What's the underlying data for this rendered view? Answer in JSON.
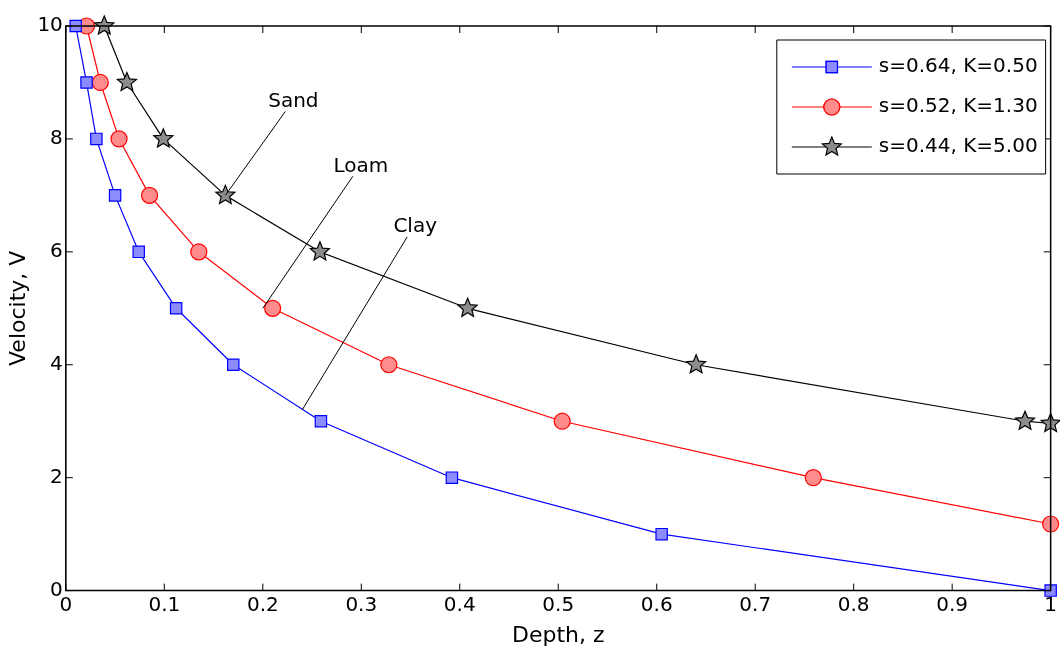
{
  "chart_data": {
    "type": "line",
    "xlabel": "Depth, z",
    "ylabel": "Velocity, V",
    "xlim": [
      0,
      1
    ],
    "ylim": [
      0,
      10
    ],
    "xticks": [
      0,
      0.1,
      0.2,
      0.3,
      0.4,
      0.5,
      0.6,
      0.7,
      0.8,
      0.9,
      1
    ],
    "yticks": [
      0,
      2,
      4,
      6,
      8,
      10
    ],
    "grid": false,
    "legend": "top right",
    "line_style": "solid",
    "series": [
      {
        "name": "s=0.64, K=0.50",
        "color": "#0000ff",
        "marker": "square",
        "x": [
          0.01,
          0.021,
          0.031,
          0.05,
          0.074,
          0.112,
          0.17,
          0.259,
          0.392,
          0.605,
          1.0
        ],
        "values": [
          10,
          9,
          8,
          7,
          6,
          5,
          4,
          3,
          2,
          1,
          0
        ]
      },
      {
        "name": "s=0.52, K=1.30",
        "color": "#ff0000",
        "marker": "circle",
        "x": [
          0.021,
          0.035,
          0.054,
          0.085,
          0.135,
          0.21,
          0.328,
          0.504,
          0.759,
          1.0
        ],
        "values": [
          10,
          9,
          8,
          7,
          6,
          5,
          4,
          3,
          2,
          1.18
        ]
      },
      {
        "name": "s=0.44, K=5.00",
        "color": "#000000",
        "marker": "star",
        "x": [
          0.039,
          0.062,
          0.099,
          0.162,
          0.258,
          0.408,
          0.64,
          0.974,
          1.0
        ],
        "values": [
          10,
          9,
          8,
          7,
          6,
          5,
          4,
          3,
          2.96
        ]
      }
    ],
    "annotations": [
      {
        "text": "Sand",
        "x": 0.162,
        "y": 7
      },
      {
        "text": "Loam",
        "x": 0.2,
        "y": 5
      },
      {
        "text": "Clay",
        "x": 0.24,
        "y": 3.2
      }
    ]
  }
}
